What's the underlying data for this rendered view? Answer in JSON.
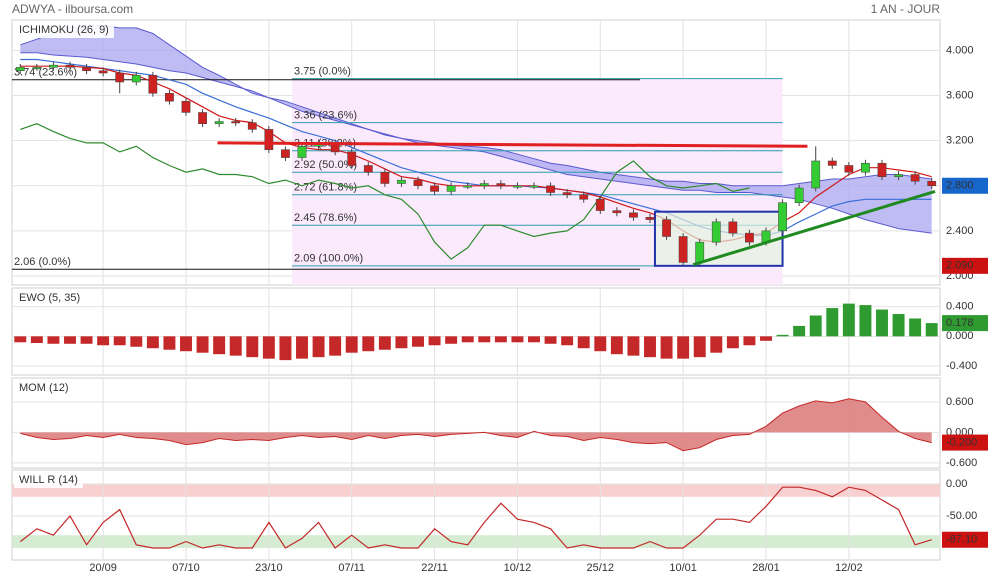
{
  "header": {
    "left": "ADWYA - ilboursa.com",
    "right": "1 AN - JOUR"
  },
  "chart_data": [
    {
      "type": "candlestick",
      "title": "ICHIMOKU (26, 9)",
      "title_color": "#1f5fbf",
      "xlim": [
        -0.5,
        55.5
      ],
      "ylim": [
        1.92,
        4.27
      ],
      "yticks": [
        {
          "value": 4,
          "label": "4.000"
        },
        {
          "value": 3.6,
          "label": "3.600"
        },
        {
          "value": 3.2,
          "label": "3.200"
        },
        {
          "value": 2.8,
          "label": "2.800"
        },
        {
          "value": 2.4,
          "label": "2.400"
        },
        {
          "value": 2,
          "label": "2.000"
        }
      ],
      "up_color": "#33cc33",
      "down_color": "#cc2222",
      "open": [
        3.82,
        3.85,
        3.85,
        3.87,
        3.85,
        3.82,
        3.8,
        3.72,
        3.78,
        3.62,
        3.55,
        3.45,
        3.35,
        3.37,
        3.36,
        3.3,
        3.12,
        3.05,
        3.15,
        3.18,
        3.1,
        2.98,
        2.92,
        2.82,
        2.85,
        2.8,
        2.75,
        2.8,
        2.8,
        2.82,
        2.8,
        2.8,
        2.8,
        2.74,
        2.72,
        2.68,
        2.58,
        2.56,
        2.52,
        2.5,
        2.35,
        2.12,
        2.3,
        2.48,
        2.38,
        2.3,
        2.4,
        2.65,
        2.78,
        3.02,
        2.98,
        2.92,
        3.0,
        2.88,
        2.9,
        2.84
      ],
      "high": [
        3.88,
        3.88,
        3.9,
        3.9,
        3.88,
        3.85,
        3.83,
        3.81,
        3.81,
        3.65,
        3.58,
        3.48,
        3.4,
        3.4,
        3.39,
        3.33,
        3.15,
        3.18,
        3.21,
        3.21,
        3.13,
        3.01,
        2.95,
        2.88,
        2.88,
        2.83,
        2.83,
        2.83,
        2.85,
        2.85,
        2.83,
        2.83,
        2.83,
        2.77,
        2.75,
        2.71,
        2.61,
        2.59,
        2.55,
        2.53,
        2.38,
        2.33,
        2.51,
        2.51,
        2.41,
        2.43,
        2.68,
        2.81,
        3.15,
        3.05,
        3.01,
        3.03,
        3.03,
        2.93,
        2.93,
        2.87
      ],
      "low": [
        3.79,
        3.82,
        3.82,
        3.82,
        3.79,
        3.77,
        3.62,
        3.69,
        3.59,
        3.52,
        3.42,
        3.32,
        3.32,
        3.33,
        3.27,
        3.09,
        3.02,
        3.02,
        3.12,
        3.07,
        2.95,
        2.89,
        2.79,
        2.79,
        2.77,
        2.72,
        2.72,
        2.77,
        2.77,
        2.77,
        2.77,
        2.77,
        2.71,
        2.69,
        2.65,
        2.55,
        2.53,
        2.49,
        2.47,
        2.32,
        2.09,
        2.09,
        2.27,
        2.35,
        2.27,
        2.27,
        2.37,
        2.62,
        2.75,
        2.95,
        2.89,
        2.89,
        2.85,
        2.85,
        2.81,
        2.77
      ],
      "close": [
        3.85,
        3.85,
        3.87,
        3.85,
        3.82,
        3.8,
        3.72,
        3.78,
        3.62,
        3.55,
        3.45,
        3.35,
        3.37,
        3.36,
        3.3,
        3.12,
        3.05,
        3.15,
        3.18,
        3.1,
        2.98,
        2.92,
        2.82,
        2.85,
        2.8,
        2.75,
        2.8,
        2.8,
        2.82,
        2.8,
        2.8,
        2.8,
        2.74,
        2.72,
        2.68,
        2.58,
        2.56,
        2.52,
        2.5,
        2.35,
        2.12,
        2.3,
        2.48,
        2.38,
        2.3,
        2.4,
        2.65,
        2.78,
        3.02,
        2.98,
        2.92,
        3.0,
        2.88,
        2.9,
        2.84,
        2.8
      ],
      "cloud": {
        "color": "#a9a6f0",
        "line_color": "#5a5ad0",
        "span_a": [
          4.05,
          4.1,
          4.15,
          4.2,
          4.22,
          4.22,
          4.2,
          4.2,
          4.15,
          4.05,
          3.95,
          3.85,
          3.78,
          3.7,
          3.62,
          3.58,
          3.55,
          3.5,
          3.45,
          3.4,
          3.35,
          3.3,
          3.25,
          3.22,
          3.2,
          3.18,
          3.16,
          3.15,
          3.14,
          3.12,
          3.08,
          3.04,
          3.0,
          2.98,
          2.95,
          2.92,
          2.9,
          2.88,
          2.86,
          2.84,
          2.84,
          2.82,
          2.82,
          2.8,
          2.8,
          2.8,
          2.8,
          2.82,
          2.84,
          2.86,
          2.86,
          2.88,
          2.9,
          2.9,
          2.88,
          2.86
        ],
        "span_b": [
          3.98,
          3.98,
          3.96,
          3.95,
          3.94,
          3.92,
          3.9,
          3.88,
          3.85,
          3.82,
          3.8,
          3.76,
          3.72,
          3.68,
          3.64,
          3.58,
          3.52,
          3.46,
          3.42,
          3.38,
          3.34,
          3.3,
          3.26,
          3.22,
          3.18,
          3.16,
          3.14,
          3.12,
          3.1,
          3.06,
          3.02,
          2.98,
          2.94,
          2.9,
          2.88,
          2.86,
          2.84,
          2.82,
          2.8,
          2.78,
          2.76,
          2.76,
          2.74,
          2.74,
          2.74,
          2.72,
          2.7,
          2.68,
          2.64,
          2.6,
          2.55,
          2.5,
          2.46,
          2.42,
          2.4,
          2.38
        ]
      },
      "series": [
        {
          "color": "#2e8b2e",
          "values": [
            3.3,
            3.35,
            3.28,
            3.22,
            3.18,
            3.18,
            3.1,
            3.15,
            3.05,
            2.98,
            2.92,
            2.95,
            2.9,
            2.9,
            2.88,
            2.82,
            2.85,
            2.8,
            2.85,
            2.82,
            2.78,
            2.8,
            2.72,
            2.68,
            2.55,
            2.3,
            2.15,
            2.25,
            2.45,
            2.45,
            2.4,
            2.35,
            2.38,
            2.4,
            2.5,
            2.7,
            2.92,
            3.02,
            2.88,
            2.8,
            2.78,
            2.8,
            2.82,
            2.75,
            2.78,
            null,
            null,
            null,
            null,
            null,
            null,
            null,
            null,
            null,
            null,
            null
          ]
        },
        {
          "color": "#3a6fd8",
          "values": [
            3.92,
            3.92,
            3.9,
            3.88,
            3.86,
            3.84,
            3.82,
            3.8,
            3.78,
            3.74,
            3.7,
            3.62,
            3.56,
            3.5,
            3.45,
            3.4,
            3.34,
            3.28,
            3.24,
            3.2,
            3.14,
            3.08,
            3.02,
            2.96,
            2.92,
            2.88,
            2.84,
            2.82,
            2.8,
            2.8,
            2.8,
            2.79,
            2.78,
            2.76,
            2.74,
            2.72,
            2.68,
            2.64,
            2.6,
            2.56,
            2.5,
            2.44,
            2.4,
            2.38,
            2.36,
            2.36,
            2.4,
            2.48,
            2.55,
            2.62,
            2.66,
            2.68,
            2.68,
            2.68,
            2.68,
            2.68
          ]
        },
        {
          "color": "#d01818",
          "values": [
            3.86,
            3.86,
            3.86,
            3.86,
            3.85,
            3.84,
            3.8,
            3.78,
            3.72,
            3.66,
            3.58,
            3.5,
            3.42,
            3.38,
            3.36,
            3.28,
            3.18,
            3.14,
            3.12,
            3.12,
            3.08,
            3.02,
            2.95,
            2.88,
            2.86,
            2.82,
            2.8,
            2.8,
            2.8,
            2.8,
            2.8,
            2.8,
            2.78,
            2.76,
            2.74,
            2.7,
            2.65,
            2.6,
            2.56,
            2.5,
            2.4,
            2.32,
            2.3,
            2.32,
            2.36,
            2.38,
            2.48,
            2.56,
            2.7,
            2.8,
            2.9,
            2.96,
            2.96,
            2.94,
            2.92,
            2.88
          ]
        }
      ],
      "fibonacci": {
        "x": [
          16.4,
          46
        ],
        "color": "#2a9cb0",
        "shade": "#fbeafb",
        "levels": [
          {
            "value": 3.75,
            "label": "3.75  (0.0%)"
          },
          {
            "value": 3.36,
            "label": "3.36  (23.6%)"
          },
          {
            "value": 3.11,
            "label": "3.11  (38.2%)"
          },
          {
            "value": 2.92,
            "label": "2.92  (50.0%)"
          },
          {
            "value": 2.72,
            "label": "2.72  (61.8%)"
          },
          {
            "value": 2.45,
            "label": "2.45  (78.6%)"
          },
          {
            "value": 2.09,
            "label": "2.09  (100.0%)"
          }
        ]
      },
      "fibonacci_left": {
        "x": [
          -0.5,
          37.4
        ],
        "color": "#111111",
        "levels": [
          {
            "value": 3.74,
            "label": "3.74  (23.6%)"
          },
          {
            "value": 2.06,
            "label": "2.06  (0.0%)"
          }
        ]
      },
      "trendlines": [
        {
          "color": "#e02020",
          "x": [
            11.9,
            47.5
          ],
          "y": [
            3.18,
            3.15
          ]
        },
        {
          "color": "#1f8a1f",
          "x": [
            40.6,
            55.2
          ],
          "y": [
            2.1,
            2.75
          ]
        }
      ],
      "box": {
        "color": "#2233aa",
        "fill": "#e4f2e0",
        "x": [
          38.3,
          46
        ],
        "y": [
          2.09,
          2.57
        ]
      },
      "tags": [
        {
          "value": 2.8,
          "label": "2.800",
          "color": "#1666cc"
        },
        {
          "value": 2.09,
          "label": "2.090",
          "color": "#cc1111"
        }
      ]
    },
    {
      "type": "bar",
      "title": "EWO (5, 35)",
      "title_color": "#2e8b2e",
      "xlim": [
        -0.5,
        55.5
      ],
      "ylim": [
        -0.52,
        0.65
      ],
      "yticks": [
        {
          "value": 0.4,
          "label": "0.400"
        },
        {
          "value": 0,
          "label": "0.000"
        },
        {
          "value": -0.4,
          "label": "-0.400"
        }
      ],
      "positive_color": "#2f9a2f",
      "negative_color": "#c42828",
      "values": [
        -0.08,
        -0.09,
        -0.1,
        -0.1,
        -0.1,
        -0.12,
        -0.12,
        -0.14,
        -0.16,
        -0.18,
        -0.2,
        -0.22,
        -0.24,
        -0.26,
        -0.28,
        -0.3,
        -0.32,
        -0.3,
        -0.28,
        -0.26,
        -0.22,
        -0.2,
        -0.18,
        -0.16,
        -0.14,
        -0.12,
        -0.1,
        -0.08,
        -0.08,
        -0.08,
        -0.08,
        -0.08,
        -0.1,
        -0.12,
        -0.16,
        -0.2,
        -0.24,
        -0.26,
        -0.28,
        -0.3,
        -0.3,
        -0.28,
        -0.22,
        -0.16,
        -0.12,
        -0.06,
        0.02,
        0.14,
        0.28,
        0.38,
        0.44,
        0.42,
        0.36,
        0.3,
        0.24,
        0.178
      ],
      "tags": [
        {
          "value": 0.178,
          "label": "0.178",
          "color": "#2f9a2f"
        }
      ]
    },
    {
      "type": "area",
      "title": "MOM (12)",
      "title_color": "#c42828",
      "xlim": [
        -0.5,
        55.5
      ],
      "ylim": [
        -0.7,
        1.07
      ],
      "yticks": [
        {
          "value": 0.6,
          "label": "0.600"
        },
        {
          "value": 0,
          "label": "0.000"
        },
        {
          "value": -0.6,
          "label": "-0.600"
        }
      ],
      "color": "#c42828",
      "fill": "#dc7878",
      "values": [
        -0.02,
        -0.1,
        -0.14,
        -0.12,
        -0.06,
        -0.1,
        -0.04,
        -0.1,
        -0.12,
        -0.16,
        -0.24,
        -0.2,
        -0.12,
        -0.16,
        -0.14,
        -0.16,
        -0.1,
        -0.06,
        -0.1,
        -0.08,
        -0.14,
        -0.06,
        -0.12,
        -0.06,
        -0.04,
        -0.08,
        -0.04,
        -0.02,
        0.0,
        -0.06,
        -0.1,
        0.02,
        -0.06,
        -0.08,
        -0.16,
        -0.1,
        -0.14,
        -0.2,
        -0.22,
        -0.2,
        -0.36,
        -0.3,
        -0.14,
        -0.06,
        -0.04,
        0.12,
        0.38,
        0.52,
        0.62,
        0.58,
        0.66,
        0.6,
        0.3,
        0.02,
        -0.12,
        -0.2
      ],
      "tags": [
        {
          "value": -0.2,
          "label": "-0.200",
          "color": "#cc1111"
        }
      ]
    },
    {
      "type": "line",
      "title": "WILL R (14)",
      "title_color": "#c42828",
      "xlim": [
        -0.5,
        55.5
      ],
      "ylim": [
        -118.75,
        21.9
      ],
      "yticks": [
        {
          "value": 0,
          "label": "0.00"
        },
        {
          "value": -50,
          "label": "-50.00"
        }
      ],
      "zones": [
        {
          "from": 0,
          "to": -20,
          "color": "#f8d0d0"
        },
        {
          "from": -80,
          "to": -100,
          "color": "#d5ecd3"
        }
      ],
      "color": "#c42828",
      "values": [
        -90,
        -70,
        -80,
        -50,
        -95,
        -60,
        -40,
        -95,
        -100,
        -100,
        -90,
        -100,
        -95,
        -100,
        -100,
        -60,
        -100,
        -85,
        -60,
        -100,
        -80,
        -100,
        -95,
        -100,
        -100,
        -70,
        -90,
        -95,
        -60,
        -30,
        -55,
        -60,
        -70,
        -100,
        -95,
        -100,
        -100,
        -100,
        -90,
        -100,
        -100,
        -80,
        -55,
        -55,
        -60,
        -35,
        -5,
        -5,
        -10,
        -20,
        -5,
        -10,
        -25,
        -40,
        -95,
        -87.1
      ],
      "tags": [
        {
          "value": -87.1,
          "label": "-87.10",
          "color": "#cc1111"
        }
      ],
      "xticks": [
        {
          "value": 5,
          "label": "20/09"
        },
        {
          "value": 10,
          "label": "07/10"
        },
        {
          "value": 15,
          "label": "23/10"
        },
        {
          "value": 20,
          "label": "07/11"
        },
        {
          "value": 25,
          "label": "22/11"
        },
        {
          "value": 30,
          "label": "10/12"
        },
        {
          "value": 35,
          "label": "25/12"
        },
        {
          "value": 40,
          "label": "10/01"
        },
        {
          "value": 45,
          "label": "28/01"
        },
        {
          "value": 50,
          "label": "12/02"
        }
      ]
    }
  ]
}
